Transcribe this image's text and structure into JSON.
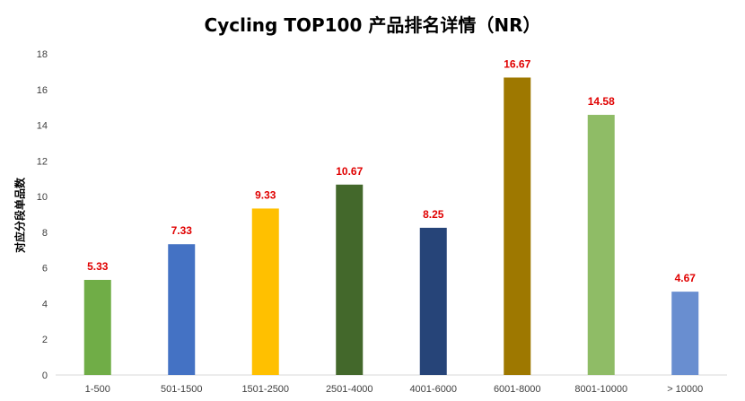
{
  "chart_data": {
    "type": "bar",
    "title": "Cycling TOP100 产品排名详情（NR）",
    "ylabel": "对应分段单品数",
    "xlabel": "",
    "categories": [
      "1-500",
      "501-1500",
      "1501-2500",
      "2501-4000",
      "4001-6000",
      "6001-8000",
      "8001-10000",
      "> 10000"
    ],
    "values": [
      5.33,
      7.33,
      9.33,
      10.67,
      8.25,
      16.67,
      14.58,
      4.67
    ],
    "value_labels": [
      "5.33",
      "7.33",
      "9.33",
      "10.67",
      "8.25",
      "16.67",
      "14.58",
      "4.67"
    ],
    "bar_colors": [
      "#70ad47",
      "#4472c4",
      "#ffc000",
      "#43682b",
      "#264478",
      "#9e7800",
      "#8fbc66",
      "#698ed0"
    ],
    "ylim": [
      0,
      18
    ],
    "yticks": [
      0,
      2,
      4,
      6,
      8,
      10,
      12,
      14,
      16,
      18
    ],
    "grid": false,
    "legend": "none"
  }
}
